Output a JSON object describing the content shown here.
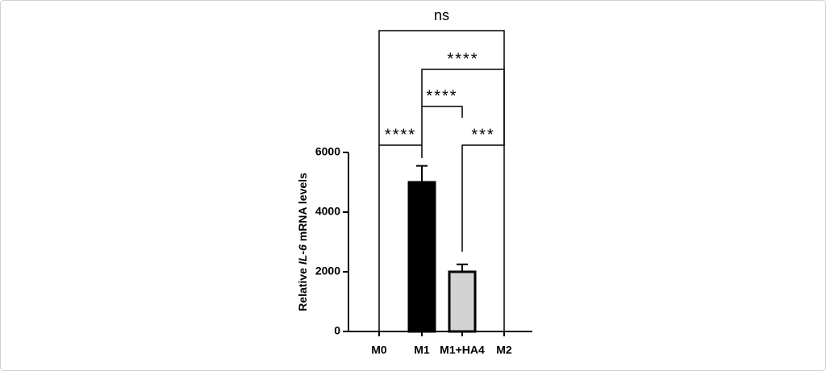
{
  "chart_data": {
    "type": "bar",
    "ylabel": {
      "prefix": "Relative",
      "gene": "IL-6",
      "suffix": "mRNA levels"
    },
    "categories": [
      "M0",
      "M1",
      "M1+HA4",
      "M2"
    ],
    "values": [
      0,
      5000,
      2000,
      0
    ],
    "errors": [
      0,
      550,
      250,
      0
    ],
    "colors": [
      "#000000",
      "#000000",
      "#d3d3d3",
      "#000000"
    ],
    "ylim": [
      0,
      6000
    ],
    "yticks": [
      0,
      2000,
      4000,
      6000
    ],
    "significance": [
      {
        "groups": [
          "M0",
          "M1"
        ],
        "label": "****"
      },
      {
        "groups": [
          "M1",
          "M1+HA4"
        ],
        "label": "****"
      },
      {
        "groups": [
          "M1+HA4",
          "M2"
        ],
        "label": "***"
      },
      {
        "groups": [
          "M1",
          "M2"
        ],
        "label": "****"
      },
      {
        "groups": [
          "M0",
          "M2"
        ],
        "label": "ns"
      }
    ]
  }
}
